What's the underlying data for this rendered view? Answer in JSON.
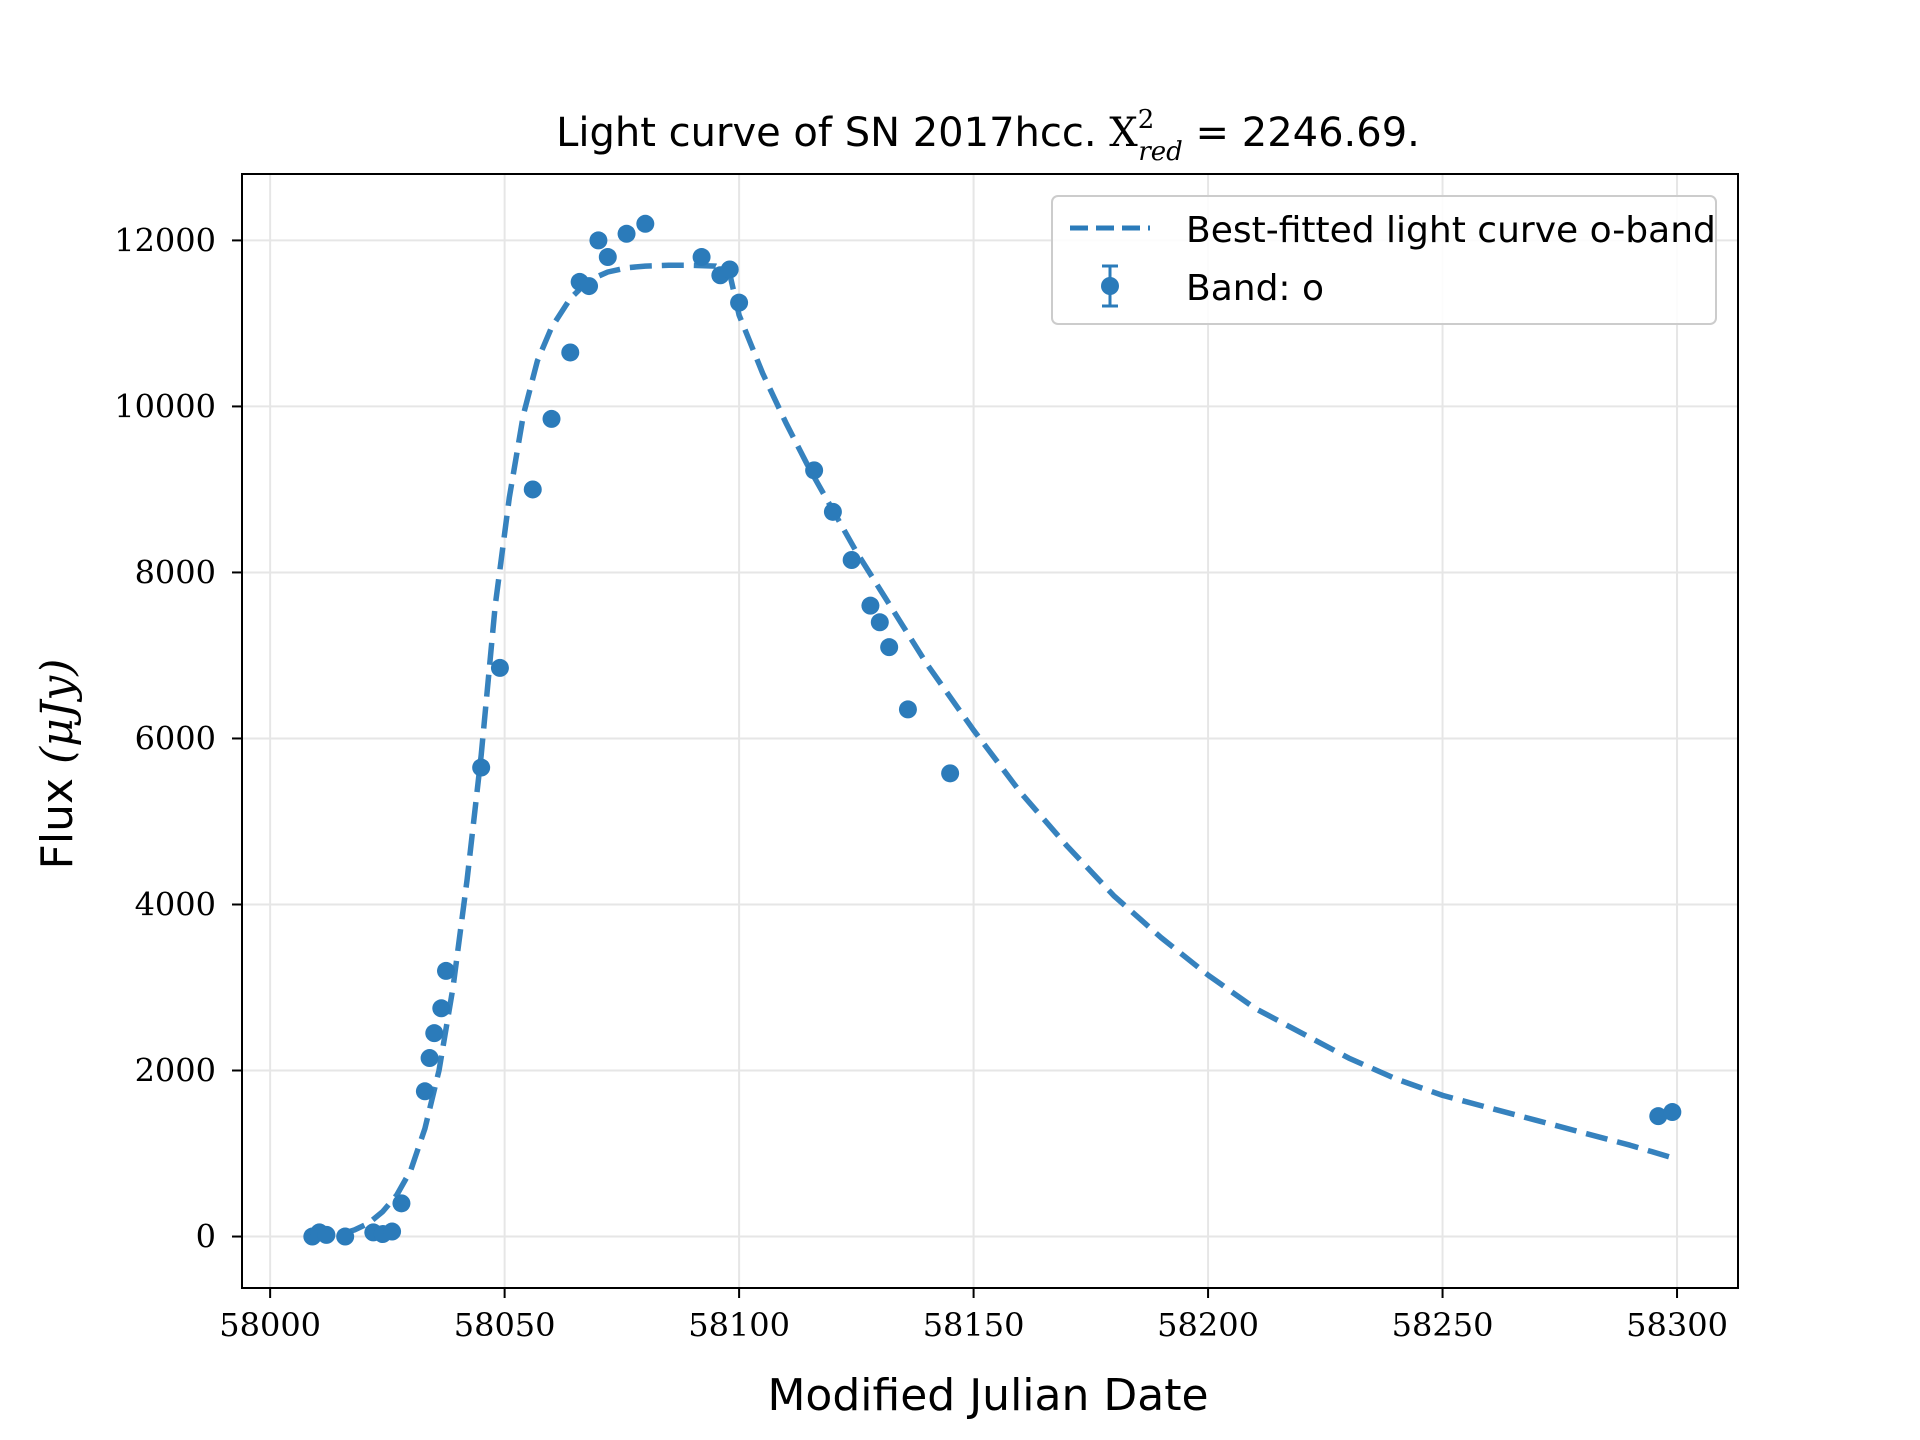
{
  "chart_data": {
    "type": "scatter",
    "title_prefix": "Light curve of SN 2017hcc. ",
    "title_chi": "X",
    "title_chi_sup": "2",
    "title_chi_sub": "red",
    "title_suffix": " = 2246.69.",
    "xlabel": "Modified Julian Date",
    "ylabel_text": "Flux ",
    "ylabel_unit": "(μJy)",
    "xlim": [
      57994,
      58313
    ],
    "ylim": [
      -620,
      12800
    ],
    "xticks": [
      58000,
      58050,
      58100,
      58150,
      58200,
      58250,
      58300
    ],
    "yticks": [
      0,
      2000,
      4000,
      6000,
      8000,
      10000,
      12000
    ],
    "grid": true,
    "legend_position": "top-right",
    "colors": {
      "series": "#2b7bba",
      "axis": "#000000",
      "grid": "#e6e6e6"
    },
    "series": [
      {
        "name": "Band: o",
        "kind": "points",
        "x": [
          58009,
          58010.5,
          58012,
          58016,
          58022,
          58024,
          58026,
          58028,
          58033,
          58034,
          58035,
          58036.5,
          58037.5,
          58045,
          58049,
          58056,
          58060,
          58064,
          58066,
          58068,
          58070,
          58072,
          58076,
          58080,
          58092,
          58096,
          58098,
          58100,
          58116,
          58120,
          58124,
          58128,
          58130,
          58132,
          58136,
          58145,
          58296,
          58299
        ],
        "y": [
          0,
          50,
          20,
          0,
          50,
          30,
          60,
          400,
          1750,
          2150,
          2450,
          2750,
          3200,
          5650,
          6850,
          9000,
          9850,
          10650,
          11500,
          11450,
          12000,
          11800,
          12080,
          12200,
          11800,
          11580,
          11650,
          11250,
          9230,
          8730,
          8150,
          7600,
          7400,
          7100,
          6350,
          5580,
          1450,
          1500
        ]
      },
      {
        "name": "Best-fitted light curve o-band",
        "kind": "line",
        "x": [
          58009,
          58014,
          58018,
          58021,
          58024,
          58027,
          58030,
          58033,
          58036,
          58039,
          58042,
          58045,
          58048,
          58051,
          58054,
          58057,
          58060,
          58064,
          58068,
          58072,
          58076,
          58080,
          58085,
          58090,
          58095,
          58098,
          58100,
          58105,
          58110,
          58115,
          58120,
          58125,
          58130,
          58135,
          58140,
          58150,
          58160,
          58170,
          58180,
          58190,
          58200,
          58210,
          58220,
          58230,
          58240,
          58250,
          58260,
          58270,
          58280,
          58290,
          58299
        ],
        "y": [
          0,
          10,
          80,
          160,
          300,
          500,
          800,
          1300,
          2000,
          3000,
          4300,
          5800,
          7600,
          8900,
          9900,
          10550,
          10950,
          11300,
          11520,
          11620,
          11670,
          11690,
          11700,
          11700,
          11690,
          11600,
          11100,
          10400,
          9800,
          9250,
          8750,
          8250,
          7800,
          7350,
          6900,
          6100,
          5350,
          4700,
          4100,
          3600,
          3150,
          2750,
          2450,
          2150,
          1900,
          1700,
          1550,
          1400,
          1250,
          1100,
          950
        ]
      }
    ]
  }
}
